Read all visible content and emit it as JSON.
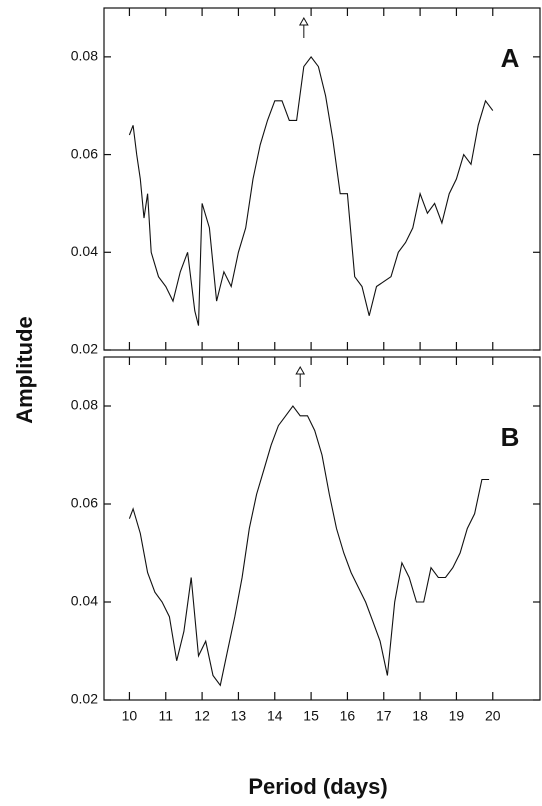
{
  "chart_data": [
    {
      "type": "line",
      "label": "A",
      "ylabel": "Amplitude",
      "x": [
        10.0,
        10.1,
        10.2,
        10.3,
        10.4,
        10.5,
        10.6,
        10.8,
        11.0,
        11.2,
        11.4,
        11.6,
        11.8,
        11.9,
        12.0,
        12.2,
        12.4,
        12.6,
        12.8,
        13.0,
        13.2,
        13.4,
        13.6,
        13.8,
        14.0,
        14.2,
        14.4,
        14.6,
        14.8,
        15.0,
        15.2,
        15.4,
        15.6,
        15.8,
        16.0,
        16.2,
        16.4,
        16.6,
        16.8,
        17.0,
        17.2,
        17.4,
        17.6,
        17.8,
        18.0,
        18.2,
        18.4,
        18.6,
        18.8,
        19.0,
        19.2,
        19.4,
        19.6,
        19.8,
        20.0
      ],
      "series": [
        {
          "color": "#111111",
          "values": [
            0.064,
            0.066,
            0.06,
            0.055,
            0.047,
            0.052,
            0.04,
            0.035,
            0.033,
            0.03,
            0.036,
            0.04,
            0.028,
            0.025,
            0.05,
            0.045,
            0.03,
            0.036,
            0.033,
            0.04,
            0.045,
            0.055,
            0.062,
            0.067,
            0.071,
            0.071,
            0.067,
            0.067,
            0.078,
            0.08,
            0.078,
            0.072,
            0.063,
            0.052,
            0.052,
            0.035,
            0.033,
            0.027,
            0.033,
            0.034,
            0.035,
            0.04,
            0.042,
            0.045,
            0.052,
            0.048,
            0.05,
            0.046,
            0.052,
            0.055,
            0.06,
            0.058,
            0.066,
            0.071,
            0.069
          ]
        }
      ],
      "peak_marker": 14.8,
      "xlim": [
        9.3,
        21.3
      ],
      "ylim": [
        0.02,
        0.09
      ],
      "yticks": [
        0.02,
        0.04,
        0.06,
        0.08
      ]
    },
    {
      "type": "line",
      "label": "B",
      "xlabel": "Period (days)",
      "x": [
        10.0,
        10.1,
        10.3,
        10.5,
        10.7,
        10.9,
        11.1,
        11.3,
        11.5,
        11.7,
        11.9,
        12.1,
        12.3,
        12.5,
        12.7,
        12.9,
        13.1,
        13.3,
        13.5,
        13.7,
        13.9,
        14.1,
        14.3,
        14.5,
        14.7,
        14.9,
        15.1,
        15.3,
        15.5,
        15.7,
        15.9,
        16.1,
        16.3,
        16.5,
        16.7,
        16.9,
        17.1,
        17.3,
        17.5,
        17.7,
        17.9,
        18.1,
        18.3,
        18.5,
        18.7,
        18.9,
        19.1,
        19.3,
        19.5,
        19.7,
        19.9
      ],
      "series": [
        {
          "color": "#111111",
          "values": [
            0.057,
            0.059,
            0.054,
            0.046,
            0.042,
            0.04,
            0.037,
            0.028,
            0.034,
            0.045,
            0.029,
            0.032,
            0.025,
            0.023,
            0.03,
            0.037,
            0.045,
            0.055,
            0.062,
            0.067,
            0.072,
            0.076,
            0.078,
            0.08,
            0.078,
            0.078,
            0.075,
            0.07,
            0.062,
            0.055,
            0.05,
            0.046,
            0.043,
            0.04,
            0.036,
            0.032,
            0.025,
            0.04,
            0.048,
            0.045,
            0.04,
            0.04,
            0.047,
            0.045,
            0.045,
            0.047,
            0.05,
            0.055,
            0.058,
            0.065,
            0.065
          ]
        }
      ],
      "peak_marker": 14.7,
      "xlim": [
        9.3,
        21.3
      ],
      "ylim": [
        0.02,
        0.09
      ],
      "yticks": [
        0.02,
        0.04,
        0.06,
        0.08
      ],
      "xticks": [
        10,
        11,
        12,
        13,
        14,
        15,
        16,
        17,
        18,
        19,
        20
      ]
    }
  ]
}
